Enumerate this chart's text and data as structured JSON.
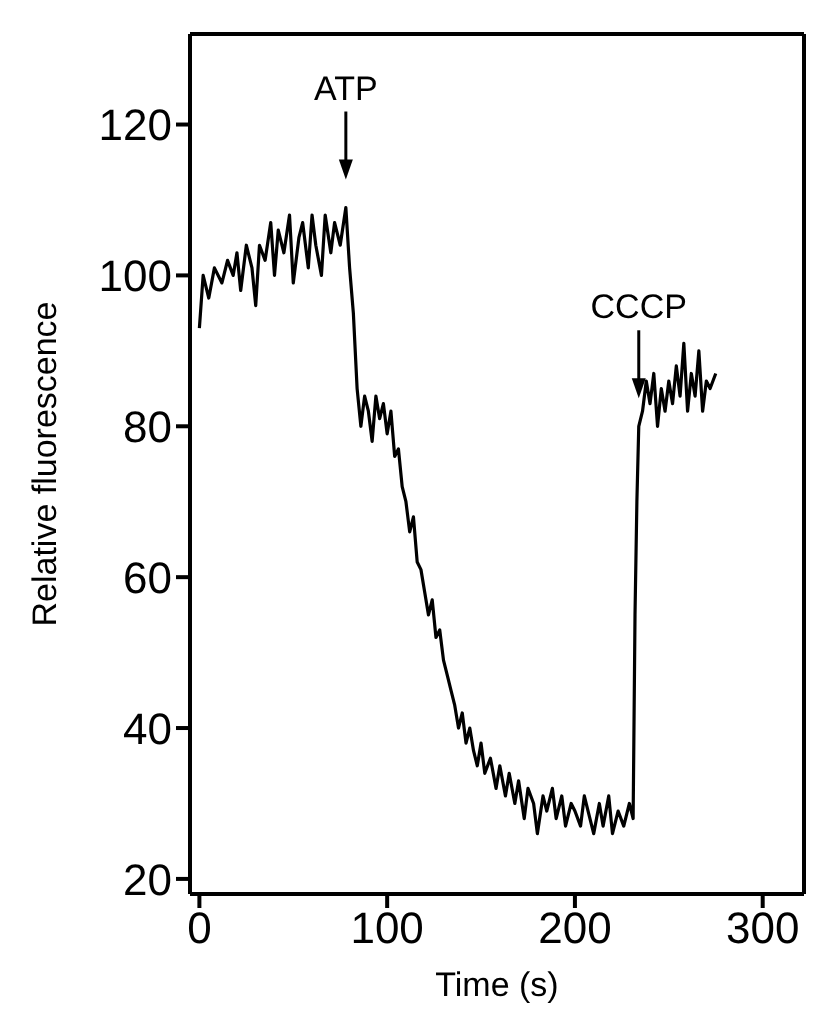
{
  "chart_data": {
    "type": "line",
    "xlabel": "Time (s)",
    "ylabel": "Relative fluorescence",
    "xlim": [
      -5,
      322
    ],
    "xticks": [
      0,
      100,
      200,
      300
    ],
    "ylim": [
      18,
      132
    ],
    "yticks": [
      20,
      40,
      60,
      80,
      100,
      120
    ],
    "annotations": [
      {
        "text": "ATP",
        "x": 78,
        "y": 109
      },
      {
        "text": "CCCP",
        "x": 234,
        "y": 80
      }
    ],
    "series": [
      {
        "color": "#000000",
        "x": [
          0,
          2,
          5,
          8,
          12,
          15,
          18,
          20,
          22,
          25,
          28,
          30,
          32,
          35,
          38,
          40,
          42,
          45,
          48,
          50,
          53,
          55,
          58,
          60,
          62,
          65,
          67,
          70,
          72,
          75,
          78,
          80,
          82,
          84,
          86,
          88,
          90,
          92,
          94,
          96,
          98,
          100,
          102,
          104,
          106,
          108,
          110,
          112,
          114,
          116,
          118,
          120,
          122,
          124,
          126,
          128,
          130,
          132,
          134,
          136,
          138,
          140,
          142,
          144,
          146,
          148,
          150,
          152,
          155,
          158,
          160,
          163,
          165,
          168,
          170,
          173,
          175,
          178,
          180,
          183,
          185,
          188,
          190,
          193,
          195,
          198,
          200,
          203,
          205,
          208,
          210,
          213,
          215,
          218,
          220,
          223,
          226,
          229,
          231,
          232,
          233,
          234,
          236,
          238,
          240,
          242,
          244,
          246,
          248,
          250,
          252,
          254,
          256,
          258,
          260,
          262,
          264,
          266,
          268,
          270,
          272,
          275
        ],
        "values": [
          93,
          100,
          97,
          101,
          99,
          102,
          100,
          103,
          98,
          104,
          101,
          96,
          104,
          102,
          107,
          100,
          106,
          103,
          108,
          99,
          105,
          107,
          101,
          108,
          104,
          100,
          108,
          103,
          107,
          104,
          109,
          101,
          95,
          85,
          80,
          84,
          82,
          78,
          84,
          81,
          83,
          79,
          82,
          76,
          77,
          72,
          70,
          66,
          68,
          62,
          61,
          58,
          55,
          57,
          52,
          53,
          49,
          47,
          45,
          43,
          40,
          42,
          38,
          40,
          37,
          35,
          38,
          34,
          36,
          32,
          35,
          31,
          34,
          30,
          33,
          28,
          32,
          30,
          26,
          31,
          29,
          32,
          28,
          31,
          27,
          30,
          29,
          27,
          31,
          28,
          26,
          30,
          27,
          31,
          26,
          29,
          27,
          30,
          28,
          55,
          70,
          80,
          82,
          86,
          83,
          87,
          80,
          85,
          82,
          86,
          83,
          88,
          84,
          91,
          82,
          87,
          84,
          90,
          82,
          86,
          85,
          87
        ]
      }
    ]
  }
}
